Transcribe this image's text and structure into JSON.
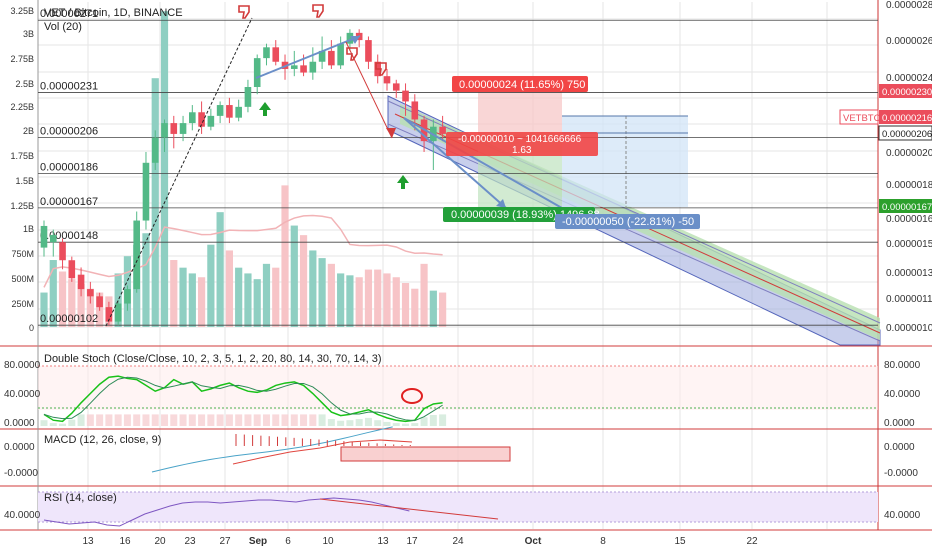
{
  "header": {
    "title": "VET / Bitcoin, 1D, BINANCE",
    "vol_label": "Vol (20)"
  },
  "colors": {
    "up": "#53b987",
    "down": "#eb4d5c",
    "vol_up": "#8fcfc2",
    "vol_down": "#f7c4c7",
    "grid": "#e6e6e6",
    "panel_sep": "#d23b3b",
    "hline": "#444444",
    "trend": "#6b8fc8",
    "channel_fill": "#9aa7dd",
    "channel_inner": "#b8e0b0",
    "rsi_bg": "#efe6fb"
  },
  "chart_data": {
    "type": "candlestick",
    "symbol": "VETBTC",
    "timeframe": "1D",
    "exchange": "BINANCE",
    "price_axis": {
      "ticks": [
        "0.00000280",
        "0.00000260",
        "0.00000240",
        "0.00000220",
        "0.00000200",
        "0.00000180",
        "0.00000160",
        "0.00000150",
        "0.00000135",
        "0.00000115",
        "0.00000101"
      ],
      "labels": [
        {
          "text": "0.00000230",
          "color": "#eb4d5c"
        },
        {
          "text": "0.00000216",
          "color": "#eb4d5c"
        },
        {
          "text": "0.00000206",
          "color": "#333333"
        },
        {
          "text": "0.00000167",
          "color": "#2ca02c"
        }
      ],
      "symbol_badge": "VETBTC"
    },
    "volume_axis": {
      "ticks": [
        "3.25B",
        "3B",
        "2.75B",
        "2.5B",
        "2.25B",
        "2B",
        "1.75B",
        "1.5B",
        "1.25B",
        "1B",
        "750M",
        "500M",
        "250M",
        "0"
      ]
    },
    "levels": [
      {
        "label": "0.00000271",
        "price": 2.71
      },
      {
        "label": "0.00000231",
        "price": 2.31
      },
      {
        "label": "0.00000206",
        "price": 2.06
      },
      {
        "label": "0.00000186",
        "price": 1.86
      },
      {
        "label": "0.00000167",
        "price": 1.67
      },
      {
        "label": "0.00000148",
        "price": 1.48
      },
      {
        "label": "0.00000102",
        "price": 1.02
      }
    ],
    "x_ticks": [
      "13",
      "16",
      "20",
      "23",
      "27",
      "Sep",
      "6",
      "10",
      "13",
      "17",
      "24",
      "Oct",
      "8",
      "15",
      "22"
    ],
    "candles": [
      [
        1.45,
        1.57,
        1.4,
        1.6
      ],
      [
        1.48,
        1.52,
        1.4,
        1.55
      ],
      [
        1.48,
        1.38,
        1.33,
        1.5
      ],
      [
        1.38,
        1.28,
        1.26,
        1.4
      ],
      [
        1.3,
        1.22,
        1.18,
        1.34
      ],
      [
        1.22,
        1.18,
        1.14,
        1.26
      ],
      [
        1.18,
        1.12,
        1.1,
        1.2
      ],
      [
        1.12,
        1.04,
        1.02,
        1.15
      ],
      [
        1.04,
        1.14,
        1.02,
        1.16
      ],
      [
        1.14,
        1.22,
        1.1,
        1.24
      ],
      [
        1.22,
        1.6,
        1.2,
        1.65
      ],
      [
        1.6,
        1.92,
        1.55,
        1.98
      ],
      [
        1.92,
        2.06,
        1.88,
        2.1
      ],
      [
        2.06,
        2.14,
        1.98,
        2.16
      ],
      [
        2.14,
        2.08,
        2.0,
        2.18
      ],
      [
        2.08,
        2.14,
        2.04,
        2.18
      ],
      [
        2.14,
        2.2,
        2.1,
        2.24
      ],
      [
        2.2,
        2.12,
        2.08,
        2.26
      ],
      [
        2.12,
        2.18,
        2.1,
        2.22
      ],
      [
        2.18,
        2.24,
        2.14,
        2.26
      ],
      [
        2.24,
        2.17,
        2.14,
        2.28
      ],
      [
        2.17,
        2.23,
        2.15,
        2.27
      ],
      [
        2.23,
        2.34,
        2.2,
        2.38
      ],
      [
        2.34,
        2.5,
        2.3,
        2.52
      ],
      [
        2.5,
        2.56,
        2.46,
        2.58
      ],
      [
        2.56,
        2.48,
        2.46,
        2.6
      ],
      [
        2.48,
        2.44,
        2.38,
        2.52
      ],
      [
        2.44,
        2.46,
        2.4,
        2.54
      ],
      [
        2.46,
        2.42,
        2.4,
        2.52
      ],
      [
        2.42,
        2.48,
        2.38,
        2.56
      ],
      [
        2.48,
        2.54,
        2.44,
        2.62
      ],
      [
        2.54,
        2.46,
        2.44,
        2.6
      ],
      [
        2.46,
        2.58,
        2.44,
        2.62
      ],
      [
        2.58,
        2.64,
        2.54,
        2.66
      ],
      [
        2.64,
        2.6,
        2.56,
        2.66
      ],
      [
        2.6,
        2.48,
        2.44,
        2.62
      ],
      [
        2.48,
        2.4,
        2.36,
        2.52
      ],
      [
        2.4,
        2.36,
        2.32,
        2.44
      ],
      [
        2.36,
        2.32,
        2.28,
        2.38
      ],
      [
        2.32,
        2.26,
        2.18,
        2.36
      ],
      [
        2.26,
        2.16,
        2.1,
        2.3
      ],
      [
        2.16,
        2.04,
        1.98,
        2.18
      ],
      [
        2.04,
        2.12,
        1.88,
        2.16
      ],
      [
        2.12,
        2.08,
        2.04,
        2.18
      ]
    ],
    "volume": [
      0.36,
      0.7,
      0.58,
      0.5,
      0.45,
      0.4,
      0.36,
      0.32,
      0.56,
      0.74,
      0.86,
      0.98,
      2.6,
      3.3,
      0.7,
      0.62,
      0.56,
      0.52,
      0.86,
      1.2,
      0.8,
      0.62,
      0.56,
      0.5,
      0.66,
      0.62,
      1.48,
      1.06,
      0.96,
      0.8,
      0.72,
      0.66,
      0.56,
      0.54,
      0.52,
      0.6,
      0.6,
      0.56,
      0.52,
      0.46,
      0.4,
      0.66,
      0.38,
      0.36
    ],
    "projections": [
      {
        "type": "short_target",
        "top": "0.00000024 (11.65%) 750",
        "bottom": "0.00000039 (18.93%) 1496.88"
      },
      {
        "type": "short_stop",
        "top": "-0.00000010 ~ 1041666666",
        "sub": "1.63",
        "bottom": "-0.00000050 (-22.81%) -50"
      }
    ],
    "indicators": [
      {
        "name": "Double Stoch (Close/Close, 10, 2, 3, 5, 1, 2, 20, 80, 14, 30, 70, 14, 3)",
        "ticks": [
          "80.0000",
          "40.0000",
          "0.0000"
        ],
        "levels": [
          80,
          20
        ]
      },
      {
        "name": "MACD (12, 26, close, 9)",
        "ticks": [
          "0.0000",
          "-0.0000"
        ]
      },
      {
        "name": "RSI (14, close)",
        "ticks": [
          "40.0000",
          "40.0000"
        ]
      }
    ]
  }
}
